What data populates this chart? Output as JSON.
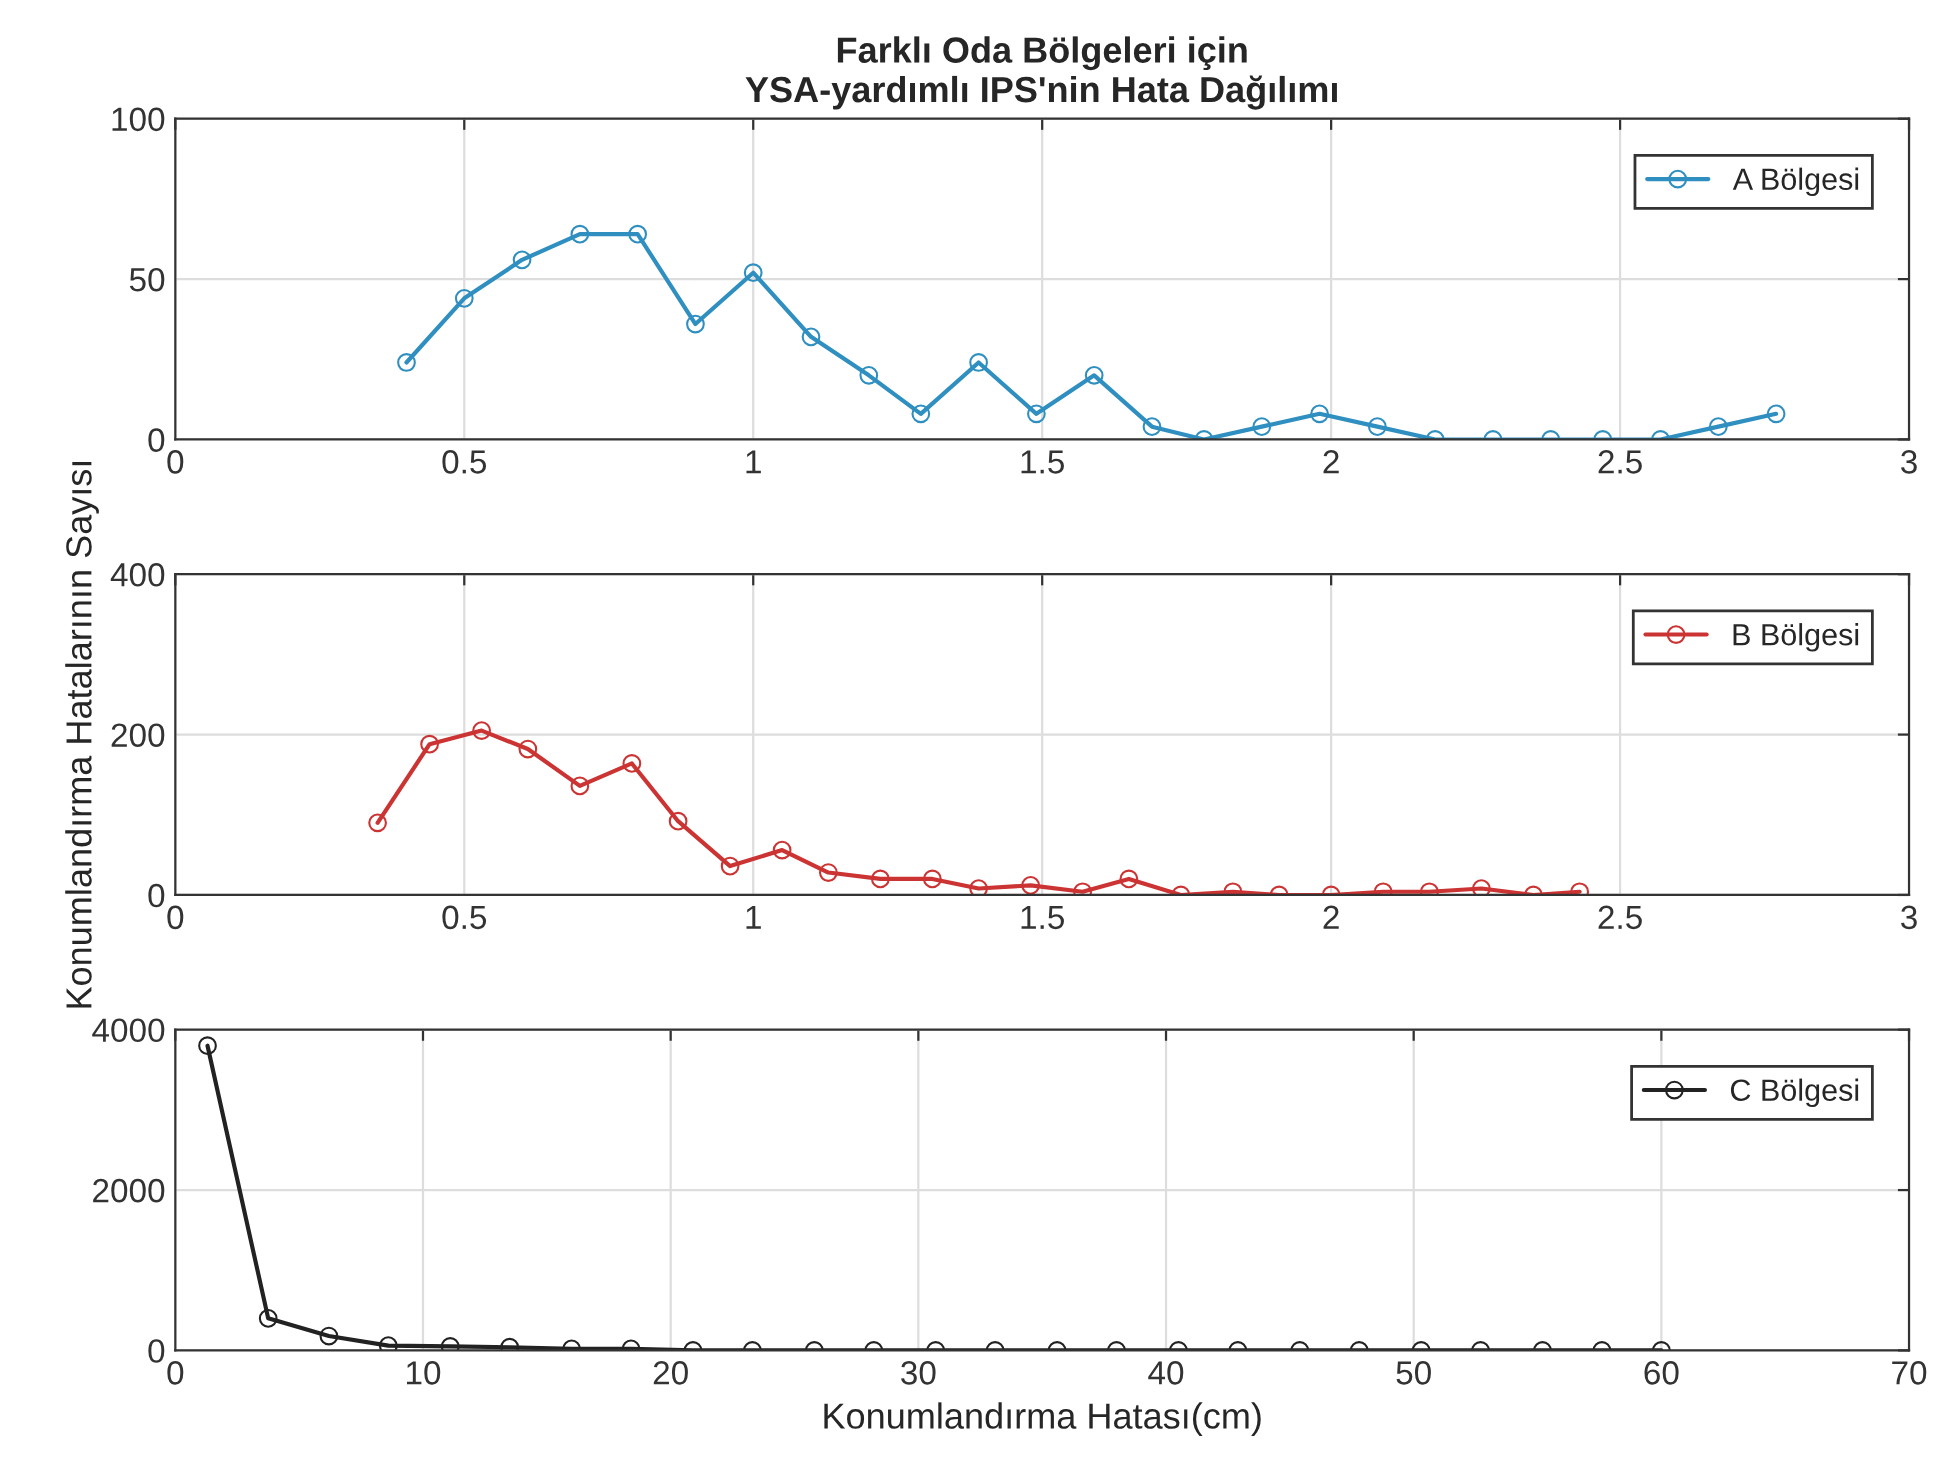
{
  "chart_data": [
    {
      "type": "line",
      "title": "Farklı Oda Bölgeleri için\nYSA-yardımlı IPS'nin Hata Dağılımı",
      "xlim": [
        0,
        3
      ],
      "xticks": [
        0,
        0.5,
        1,
        1.5,
        2,
        2.5,
        3
      ],
      "ylim": [
        0,
        100
      ],
      "yticks": [
        0,
        50,
        100
      ],
      "grid": true,
      "legend": "top right",
      "marker": "circle",
      "line_style": "solid",
      "x": [
        0.4,
        0.5,
        0.6,
        0.7,
        0.8,
        0.9,
        1.0,
        1.1,
        1.2,
        1.29,
        1.39,
        1.49,
        1.59,
        1.69,
        1.78,
        1.88,
        1.98,
        2.08,
        2.18,
        2.28,
        2.38,
        2.47,
        2.57,
        2.67,
        2.77
      ],
      "series": [
        {
          "name": "A Bölgesi",
          "color": "#2f8fc0",
          "values": [
            24,
            44,
            56,
            64,
            64,
            36,
            52,
            32,
            20,
            8,
            24,
            8,
            20,
            4,
            0,
            4,
            8,
            4,
            0,
            0,
            0,
            0,
            0,
            4,
            8
          ]
        }
      ]
    },
    {
      "type": "line",
      "ylabel": "Konumlandırma Hatalarının Sayısı",
      "xlim": [
        0,
        3
      ],
      "xticks": [
        0,
        0.5,
        1,
        1.5,
        2,
        2.5,
        3
      ],
      "ylim": [
        0,
        400
      ],
      "yticks": [
        0,
        200,
        400
      ],
      "grid": true,
      "legend": "top right",
      "marker": "circle",
      "line_style": "solid",
      "x": [
        0.35,
        0.44,
        0.53,
        0.61,
        0.7,
        0.79,
        0.87,
        0.96,
        1.05,
        1.13,
        1.22,
        1.31,
        1.39,
        1.48,
        1.57,
        1.65,
        1.74,
        1.83,
        1.91,
        2.0,
        2.09,
        2.17,
        2.26,
        2.35,
        2.43
      ],
      "series": [
        {
          "name": "B Bölgesi",
          "color": "#cc3333",
          "values": [
            90,
            188,
            205,
            182,
            136,
            164,
            92,
            36,
            56,
            28,
            20,
            20,
            8,
            12,
            4,
            20,
            0,
            4,
            0,
            0,
            4,
            4,
            8,
            0,
            4
          ]
        }
      ]
    },
    {
      "type": "line",
      "xlabel": "Konumlandırma Hatası(cm)",
      "xlim": [
        0,
        70
      ],
      "xticks": [
        0,
        10,
        20,
        30,
        40,
        50,
        60,
        70
      ],
      "ylim": [
        0,
        4000
      ],
      "yticks": [
        0,
        2000,
        4000
      ],
      "grid": true,
      "legend": "top right",
      "marker": "circle",
      "line_style": "solid",
      "x": [
        1.3,
        3.75,
        6.2,
        8.6,
        11.1,
        13.5,
        16,
        18.4,
        20.9,
        23.3,
        25.8,
        28.2,
        30.7,
        33.1,
        35.6,
        38,
        40.5,
        42.9,
        45.4,
        47.8,
        50.3,
        52.7,
        55.2,
        57.6,
        60
      ],
      "series": [
        {
          "name": "C Bölgesi",
          "color": "#222222",
          "values": [
            3800,
            400,
            180,
            60,
            50,
            40,
            20,
            20,
            0,
            0,
            0,
            0,
            0,
            0,
            0,
            0,
            0,
            0,
            0,
            0,
            0,
            0,
            0,
            0,
            0
          ]
        }
      ]
    }
  ]
}
